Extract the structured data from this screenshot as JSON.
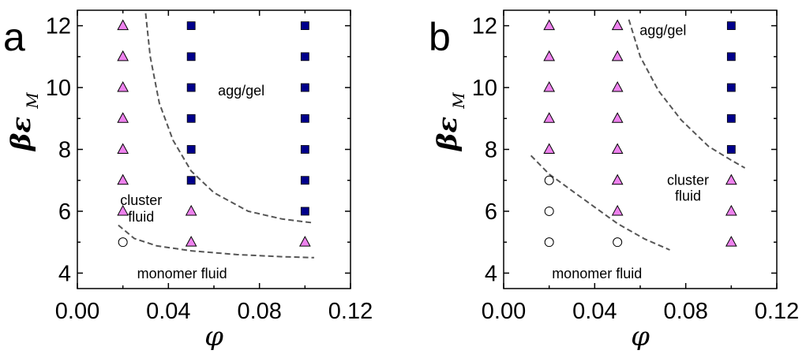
{
  "chart_data": [
    {
      "panel": "a",
      "type": "scatter",
      "xlabel": "φ",
      "ylabel": "βε",
      "ylabel_sub": "M",
      "xlim": [
        0.0,
        0.12
      ],
      "ylim": [
        3.5,
        12.5
      ],
      "xticks": [
        "0.00",
        "0.04",
        "0.08",
        "0.12"
      ],
      "yticks": [
        "4",
        "6",
        "8",
        "10",
        "12"
      ],
      "series": [
        {
          "marker": "circle",
          "fill": "#ffffff",
          "points": [
            [
              0.02,
              5
            ]
          ]
        },
        {
          "marker": "triangle",
          "fill": "#ee82ee",
          "points": [
            [
              0.02,
              6
            ],
            [
              0.02,
              7
            ],
            [
              0.02,
              8
            ],
            [
              0.02,
              9
            ],
            [
              0.02,
              10
            ],
            [
              0.02,
              11
            ],
            [
              0.02,
              12
            ],
            [
              0.05,
              5
            ],
            [
              0.05,
              6
            ],
            [
              0.1,
              5
            ]
          ]
        },
        {
          "marker": "square",
          "fill": "#00008b",
          "points": [
            [
              0.05,
              7
            ],
            [
              0.05,
              8
            ],
            [
              0.05,
              9
            ],
            [
              0.05,
              10
            ],
            [
              0.05,
              11
            ],
            [
              0.05,
              12
            ],
            [
              0.1,
              6
            ],
            [
              0.1,
              7
            ],
            [
              0.1,
              8
            ],
            [
              0.1,
              9
            ],
            [
              0.1,
              10
            ],
            [
              0.1,
              11
            ],
            [
              0.1,
              12
            ]
          ]
        }
      ],
      "boundaries": [
        [
          [
            0.03,
            12.4
          ],
          [
            0.032,
            11.0
          ],
          [
            0.036,
            9.5
          ],
          [
            0.042,
            8.3
          ],
          [
            0.05,
            7.3
          ],
          [
            0.06,
            6.6
          ],
          [
            0.075,
            6.0
          ],
          [
            0.09,
            5.75
          ],
          [
            0.104,
            5.62
          ]
        ],
        [
          [
            0.018,
            5.55
          ],
          [
            0.025,
            5.12
          ],
          [
            0.035,
            4.88
          ],
          [
            0.05,
            4.72
          ],
          [
            0.07,
            4.6
          ],
          [
            0.09,
            4.53
          ],
          [
            0.104,
            4.5
          ]
        ]
      ],
      "annotations": [
        {
          "text": "agg/gel",
          "x": 0.072,
          "y": 9.9
        },
        {
          "text": "cluster",
          "x": 0.028,
          "y": 6.35
        },
        {
          "text": "fluid",
          "x": 0.028,
          "y": 5.82
        },
        {
          "text": "monomer fluid",
          "x": 0.046,
          "y": 3.98
        }
      ]
    },
    {
      "panel": "b",
      "type": "scatter",
      "xlabel": "φ",
      "ylabel": "βε",
      "ylabel_sub": "M",
      "xlim": [
        0.0,
        0.12
      ],
      "ylim": [
        3.5,
        12.5
      ],
      "xticks": [
        "0.00",
        "0.04",
        "0.08",
        "0.12"
      ],
      "yticks": [
        "4",
        "6",
        "8",
        "10",
        "12"
      ],
      "series": [
        {
          "marker": "circle",
          "fill": "#ffffff",
          "points": [
            [
              0.02,
              5
            ],
            [
              0.02,
              6
            ],
            [
              0.02,
              7
            ],
            [
              0.05,
              5
            ]
          ]
        },
        {
          "marker": "triangle",
          "fill": "#ee82ee",
          "points": [
            [
              0.02,
              8
            ],
            [
              0.02,
              9
            ],
            [
              0.02,
              10
            ],
            [
              0.02,
              11
            ],
            [
              0.02,
              12
            ],
            [
              0.05,
              6
            ],
            [
              0.05,
              7
            ],
            [
              0.05,
              8
            ],
            [
              0.05,
              9
            ],
            [
              0.05,
              10
            ],
            [
              0.05,
              11
            ],
            [
              0.05,
              12
            ],
            [
              0.1,
              5
            ],
            [
              0.1,
              6
            ],
            [
              0.1,
              7
            ]
          ]
        },
        {
          "marker": "square",
          "fill": "#00008b",
          "points": [
            [
              0.1,
              8
            ],
            [
              0.1,
              9
            ],
            [
              0.1,
              10
            ],
            [
              0.1,
              11
            ],
            [
              0.1,
              12
            ]
          ]
        }
      ],
      "boundaries": [
        [
          [
            0.012,
            7.8
          ],
          [
            0.02,
            7.2
          ],
          [
            0.035,
            6.4
          ],
          [
            0.05,
            5.6
          ],
          [
            0.062,
            5.1
          ],
          [
            0.073,
            4.75
          ]
        ],
        [
          [
            0.055,
            12.2
          ],
          [
            0.06,
            11.0
          ],
          [
            0.068,
            9.9
          ],
          [
            0.078,
            8.95
          ],
          [
            0.09,
            8.1
          ],
          [
            0.1,
            7.65
          ],
          [
            0.106,
            7.4
          ]
        ]
      ],
      "annotations": [
        {
          "text": "agg/gel",
          "x": 0.07,
          "y": 11.85
        },
        {
          "text": "cluster",
          "x": 0.081,
          "y": 7.0
        },
        {
          "text": "fluid",
          "x": 0.081,
          "y": 6.5
        },
        {
          "text": "monomer fluid",
          "x": 0.041,
          "y": 3.98
        }
      ]
    }
  ]
}
